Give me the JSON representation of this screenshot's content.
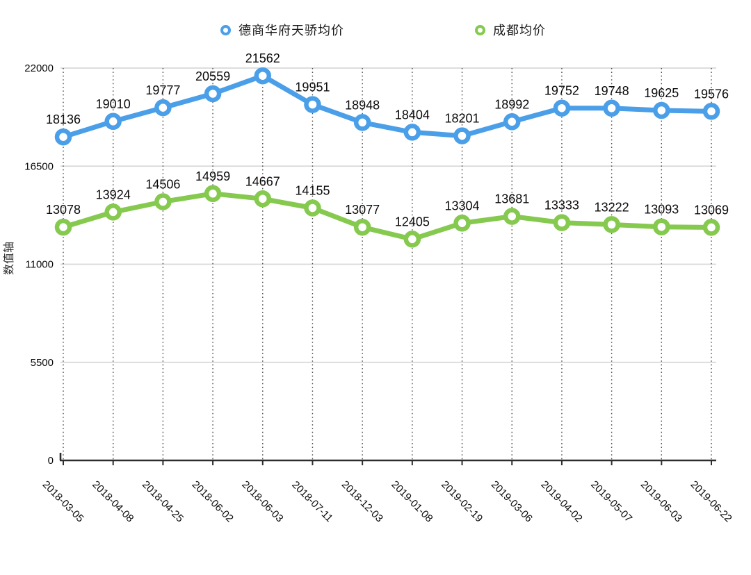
{
  "chart_data": {
    "type": "line",
    "title": "",
    "xlabel": "",
    "ylabel": "数值轴",
    "ylim": [
      0,
      22000
    ],
    "yticks": [
      0,
      5500,
      11000,
      16500,
      22000
    ],
    "legend_position": "top",
    "grid": {
      "horizontal_gridlines": true,
      "vertical_dotted_guides": true
    },
    "categories": [
      "2018-03-05",
      "2018-04-08",
      "2018-04-25",
      "2018-06-02",
      "2018-06-03",
      "2018-07-11",
      "2018-12-03",
      "2019-01-08",
      "2019-02-19",
      "2019-03-06",
      "2019-04-02",
      "2019-05-07",
      "2019-06-03",
      "2019-06-22"
    ],
    "series": [
      {
        "name": "德商华府天骄均价",
        "color": "#4A9FE8",
        "marker": "ring",
        "values": [
          18136,
          19010,
          19777,
          20559,
          21562,
          19951,
          18948,
          18404,
          18201,
          18992,
          19752,
          19748,
          19625,
          19576
        ]
      },
      {
        "name": "成都均价",
        "color": "#85C94E",
        "marker": "ring",
        "values": [
          13078,
          13924,
          14506,
          14959,
          14667,
          14155,
          13077,
          12405,
          13304,
          13681,
          13333,
          13222,
          13093,
          13069
        ]
      }
    ],
    "colors": {
      "gridline": "#D8D8D8",
      "guide_dots": "#4A4A4A",
      "axis": "#2D2D2D",
      "text": "#0A0A0A",
      "axis_title_text": "#333333"
    }
  }
}
